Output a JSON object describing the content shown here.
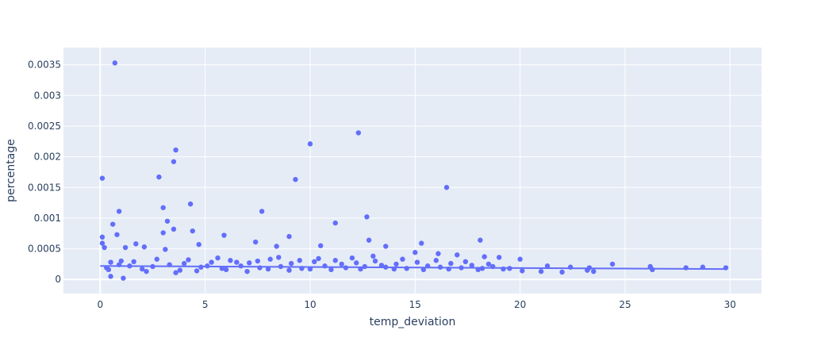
{
  "chart_data": {
    "type": "scatter",
    "title": "",
    "xlabel": "temp_deviation",
    "ylabel": "percentage",
    "xlim": [
      -1.75,
      31.5
    ],
    "ylim": [
      -0.00023,
      0.00378
    ],
    "x_ticks": [
      0,
      5,
      10,
      15,
      20,
      25,
      30
    ],
    "x_tick_labels": [
      "0",
      "5",
      "10",
      "15",
      "20",
      "25",
      "30"
    ],
    "y_ticks": [
      0,
      0.0005,
      0.001,
      0.0015,
      0.002,
      0.0025,
      0.003,
      0.0035
    ],
    "y_tick_labels": [
      "0",
      "0.0005",
      "0.001",
      "0.0015",
      "0.002",
      "0.0025",
      "0.003",
      "0.0035"
    ],
    "grid": true,
    "legend": "none",
    "colors": {
      "marker": "#636efa",
      "plot_bg": "#e5ecf6",
      "grid": "#ffffff",
      "text": "#2a3f5f"
    },
    "series": [
      {
        "name": "",
        "points": [
          [
            0.7,
            0.00353
          ],
          [
            0.1,
            0.00165
          ],
          [
            2.8,
            0.00167
          ],
          [
            3.5,
            0.00192
          ],
          [
            3.6,
            0.00211
          ],
          [
            3.0,
            0.00117
          ],
          [
            4.3,
            0.00123
          ],
          [
            0.9,
            0.00111
          ],
          [
            7.7,
            0.00111
          ],
          [
            9.3,
            0.00163
          ],
          [
            10.0,
            0.00221
          ],
          [
            12.3,
            0.00239
          ],
          [
            16.5,
            0.0015
          ],
          [
            12.7,
            0.00102
          ],
          [
            11.2,
            0.00092
          ],
          [
            3.2,
            0.00095
          ],
          [
            0.6,
            0.0009
          ],
          [
            3.5,
            0.00082
          ],
          [
            4.4,
            0.00079
          ],
          [
            0.8,
            0.00073
          ],
          [
            3.0,
            0.00076
          ],
          [
            5.9,
            0.00072
          ],
          [
            9.0,
            0.0007
          ],
          [
            18.1,
            0.00064
          ],
          [
            12.8,
            0.00064
          ],
          [
            0.1,
            0.00069
          ],
          [
            0.1,
            0.00059
          ],
          [
            1.7,
            0.00058
          ],
          [
            15.3,
            0.00059
          ],
          [
            7.4,
            0.00061
          ],
          [
            0.2,
            0.00052
          ],
          [
            2.1,
            0.00053
          ],
          [
            4.7,
            0.00057
          ],
          [
            8.4,
            0.00054
          ],
          [
            10.5,
            0.00055
          ],
          [
            13.6,
            0.00054
          ],
          [
            3.1,
            0.00049
          ],
          [
            1.2,
            0.00052
          ],
          [
            16.1,
            0.00042
          ],
          [
            17.0,
            0.0004
          ],
          [
            18.3,
            0.00037
          ],
          [
            19.0,
            0.00036
          ],
          [
            20.0,
            0.00033
          ],
          [
            21.3,
            0.00022
          ],
          [
            22.4,
            0.0002
          ],
          [
            23.3,
            0.00019
          ],
          [
            24.4,
            0.00025
          ],
          [
            26.2,
            0.00021
          ],
          [
            26.3,
            0.00016
          ],
          [
            27.9,
            0.00019
          ],
          [
            28.7,
            0.0002
          ],
          [
            29.8,
            0.00019
          ],
          [
            21.0,
            0.00013
          ],
          [
            22.0,
            0.00012
          ],
          [
            23.2,
            0.00015
          ],
          [
            23.5,
            0.00013
          ],
          [
            19.5,
            0.00018
          ],
          [
            20.1,
            0.00014
          ],
          [
            0.5,
            5e-05
          ],
          [
            1.1,
            2e-05
          ],
          [
            0.3,
            0.00019
          ],
          [
            0.5,
            0.00028
          ],
          [
            1.0,
            0.0003
          ],
          [
            1.4,
            0.00022
          ],
          [
            2.0,
            0.00017
          ],
          [
            2.5,
            0.00021
          ],
          [
            3.3,
            0.00024
          ],
          [
            3.8,
            0.00015
          ],
          [
            4.2,
            0.00032
          ],
          [
            4.8,
            0.0002
          ],
          [
            5.3,
            0.00028
          ],
          [
            5.8,
            0.00018
          ],
          [
            6.2,
            0.00031
          ],
          [
            6.7,
            0.00022
          ],
          [
            7.1,
            0.00027
          ],
          [
            7.6,
            0.00019
          ],
          [
            8.1,
            0.00033
          ],
          [
            8.6,
            0.00021
          ],
          [
            9.1,
            0.00026
          ],
          [
            9.6,
            0.00018
          ],
          [
            10.2,
            0.00029
          ],
          [
            10.7,
            0.00022
          ],
          [
            11.2,
            0.00031
          ],
          [
            11.7,
            0.00019
          ],
          [
            12.2,
            0.00027
          ],
          [
            12.6,
            0.00021
          ],
          [
            13.1,
            0.0003
          ],
          [
            13.6,
            0.0002
          ],
          [
            14.1,
            0.00025
          ],
          [
            14.6,
            0.00018
          ],
          [
            15.1,
            0.00028
          ],
          [
            15.6,
            0.00022
          ],
          [
            16.2,
            0.0002
          ],
          [
            16.7,
            0.00026
          ],
          [
            17.2,
            0.00019
          ],
          [
            17.7,
            0.00023
          ],
          [
            18.2,
            0.00018
          ],
          [
            18.7,
            0.00021
          ],
          [
            19.2,
            0.00017
          ],
          [
            0.4,
            0.00016
          ],
          [
            0.9,
            0.00024
          ],
          [
            1.6,
            0.00029
          ],
          [
            2.2,
            0.00013
          ],
          [
            2.7,
            0.00033
          ],
          [
            3.6,
            0.00011
          ],
          [
            4.0,
            0.00026
          ],
          [
            4.6,
            0.00014
          ],
          [
            5.1,
            0.00022
          ],
          [
            5.6,
            0.00035
          ],
          [
            6.0,
            0.00016
          ],
          [
            6.5,
            0.00028
          ],
          [
            7.0,
            0.00013
          ],
          [
            7.5,
            0.0003
          ],
          [
            8.0,
            0.00017
          ],
          [
            8.5,
            0.00036
          ],
          [
            9.0,
            0.00015
          ],
          [
            9.5,
            0.00031
          ],
          [
            10.0,
            0.00017
          ],
          [
            10.4,
            0.00034
          ],
          [
            11.0,
            0.00016
          ],
          [
            11.5,
            0.00025
          ],
          [
            12.0,
            0.00035
          ],
          [
            12.4,
            0.00017
          ],
          [
            13.0,
            0.00038
          ],
          [
            13.4,
            0.00023
          ],
          [
            14.0,
            0.00017
          ],
          [
            14.4,
            0.00033
          ],
          [
            15.0,
            0.00044
          ],
          [
            15.4,
            0.00016
          ],
          [
            16.0,
            0.00031
          ],
          [
            16.6,
            0.00017
          ],
          [
            17.4,
            0.00029
          ],
          [
            18.0,
            0.00016
          ],
          [
            18.5,
            0.00025
          ]
        ]
      }
    ],
    "trend_line": [
      [
        0,
        0.00022
      ],
      [
        29.8,
        0.00017
      ]
    ]
  }
}
